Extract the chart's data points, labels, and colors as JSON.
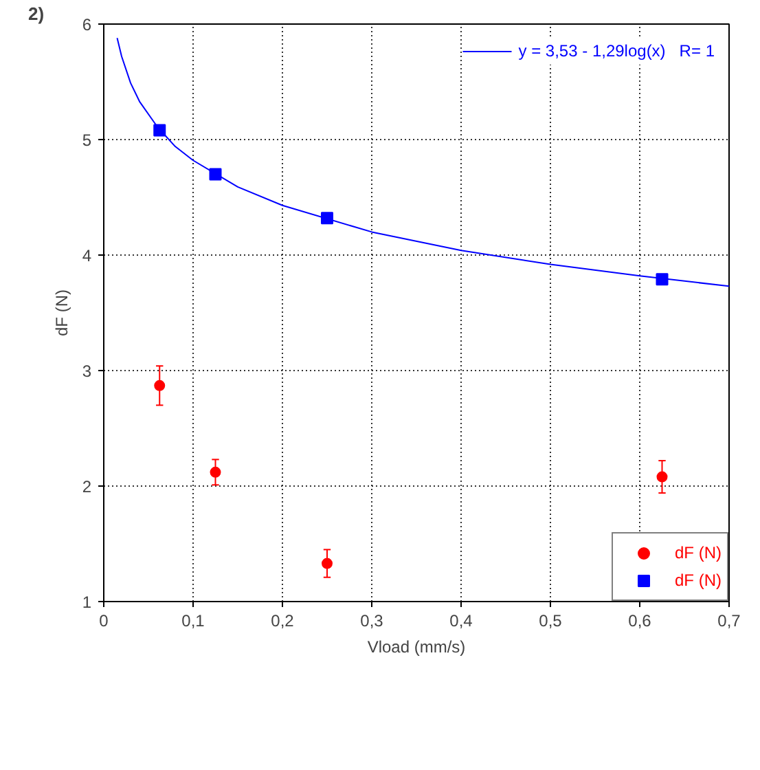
{
  "chart_data": {
    "type": "scatter",
    "xlabel": "Vload (mm/s)",
    "ylabel": "dF (N)",
    "annotations": [
      "2)"
    ],
    "xlim": [
      0,
      0.7
    ],
    "ylim": [
      1,
      6
    ],
    "xticks": [
      {
        "value": 0,
        "label": "0"
      },
      {
        "value": 0.1,
        "label": "0,1"
      },
      {
        "value": 0.2,
        "label": "0,2"
      },
      {
        "value": 0.3,
        "label": "0,3"
      },
      {
        "value": 0.4,
        "label": "0,4"
      },
      {
        "value": 0.5,
        "label": "0,5"
      },
      {
        "value": 0.6,
        "label": "0,6"
      },
      {
        "value": 0.7,
        "label": "0,7"
      }
    ],
    "yticks": [
      1,
      2,
      3,
      4,
      5,
      6
    ],
    "grid": true,
    "legend": "bottom right",
    "x": [
      0.0625,
      0.125,
      0.25,
      0.625
    ],
    "series": [
      {
        "name": "dF (N)",
        "color": "#ff0000",
        "marker": "circle",
        "values": [
          2.87,
          2.12,
          1.33,
          2.08
        ],
        "errors": [
          0.17,
          0.11,
          0.12,
          0.14
        ]
      },
      {
        "name": "dF (N)",
        "color": "#0000ff",
        "marker": "square",
        "values": [
          5.08,
          4.7,
          4.32,
          3.79
        ]
      },
      {
        "name": "y = 3,53 - 1,29log(x)   R= 1",
        "type": "line",
        "color": "#0000ff",
        "marker": "none",
        "x": [
          0.015,
          0.02,
          0.03,
          0.04,
          0.06,
          0.08,
          0.1,
          0.15,
          0.2,
          0.3,
          0.4,
          0.5,
          0.6,
          0.7
        ],
        "values": [
          5.88,
          5.72,
          5.49,
          5.33,
          5.11,
          4.94,
          4.82,
          4.59,
          4.43,
          4.2,
          4.04,
          3.92,
          3.82,
          3.73
        ]
      }
    ]
  }
}
